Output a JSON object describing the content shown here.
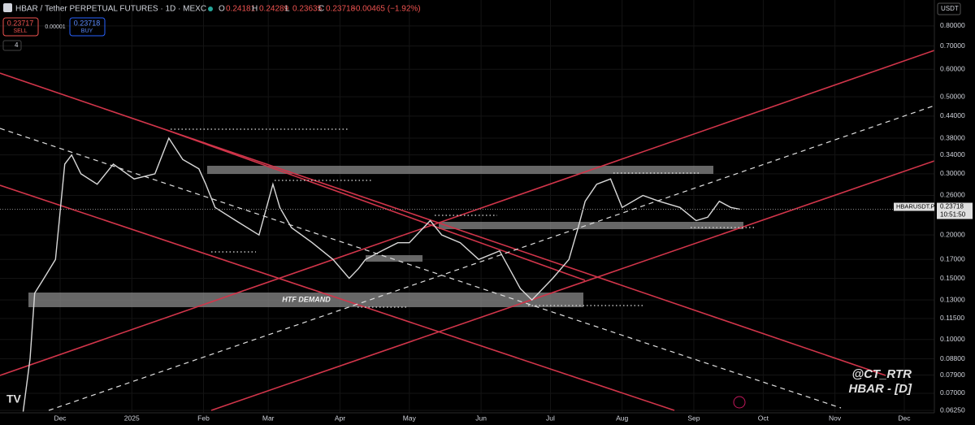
{
  "header": {
    "symbol": "HBAR / Tether PERPETUAL FUTURES · 1D · MEXC",
    "ohlc": [
      {
        "label": "O",
        "value": "0.24181"
      },
      {
        "label": "H",
        "value": "0.24289"
      },
      {
        "label": "L",
        "value": "0.23635"
      },
      {
        "label": "C",
        "value": "0.23718"
      }
    ],
    "change": "−0.00465 (−1.92%)"
  },
  "order": {
    "sell": "0.23717",
    "sell_label": "SELL",
    "spread": "0.00001",
    "buy": "0.23718",
    "buy_label": "BUY"
  },
  "indicators_count": "4",
  "currency": "USDT",
  "chart_data": {
    "type": "line",
    "log_scale": true,
    "grid": true,
    "xlim": [
      -26,
      378
    ],
    "xticks": [
      {
        "value": 0,
        "label": "Dec"
      },
      {
        "value": 31,
        "label": "2025"
      },
      {
        "value": 62,
        "label": "Feb"
      },
      {
        "value": 90,
        "label": "Mar"
      },
      {
        "value": 121,
        "label": "Apr"
      },
      {
        "value": 151,
        "label": "May"
      },
      {
        "value": 182,
        "label": "Jun"
      },
      {
        "value": 212,
        "label": "Jul"
      },
      {
        "value": 243,
        "label": "Aug"
      },
      {
        "value": 274,
        "label": "Sep"
      },
      {
        "value": 304,
        "label": "Oct"
      },
      {
        "value": 335,
        "label": "Nov"
      },
      {
        "value": 365,
        "label": "Dec"
      }
    ],
    "ylim": [
      0.0625,
      0.95
    ],
    "yticks": [
      {
        "value": 0.8,
        "label": "0.80000"
      },
      {
        "value": 0.7,
        "label": "0.70000"
      },
      {
        "value": 0.6,
        "label": "0.60000"
      },
      {
        "value": 0.5,
        "label": "0.50000"
      },
      {
        "value": 0.44,
        "label": "0.44000"
      },
      {
        "value": 0.38,
        "label": "0.38000"
      },
      {
        "value": 0.34,
        "label": "0.34000"
      },
      {
        "value": 0.3,
        "label": "0.30000"
      },
      {
        "value": 0.26,
        "label": "0.26000"
      },
      {
        "value": 0.2,
        "label": "0.20000"
      },
      {
        "value": 0.17,
        "label": "0.17000"
      },
      {
        "value": 0.15,
        "label": "0.15000"
      },
      {
        "value": 0.13,
        "label": "0.13000"
      },
      {
        "value": 0.115,
        "label": "0.11500"
      },
      {
        "value": 0.1,
        "label": "0.10000"
      },
      {
        "value": 0.088,
        "label": "0.08800"
      },
      {
        "value": 0.079,
        "label": "0.07900"
      },
      {
        "value": 0.07,
        "label": "0.07000"
      },
      {
        "value": 0.0625,
        "label": "0.06250"
      }
    ],
    "series": [
      {
        "name": "HBARUSDT.P",
        "color": "#d9d9d9",
        "x": [
          -16,
          -13,
          -11,
          -7,
          -2,
          2,
          5,
          9,
          16,
          23,
          32,
          41,
          47,
          53,
          60,
          63,
          67,
          76,
          86,
          92,
          95,
          100,
          109,
          118,
          125,
          129,
          132,
          139,
          146,
          151,
          160,
          165,
          173,
          181,
          190,
          199,
          204,
          213,
          220,
          224,
          227,
          232,
          238,
          243,
          252,
          259,
          268,
          275,
          280,
          285,
          290,
          294
        ],
        "values": [
          0.062,
          0.088,
          0.136,
          0.15,
          0.17,
          0.32,
          0.34,
          0.3,
          0.28,
          0.32,
          0.29,
          0.3,
          0.38,
          0.33,
          0.31,
          0.28,
          0.24,
          0.22,
          0.2,
          0.28,
          0.24,
          0.21,
          0.19,
          0.17,
          0.15,
          0.16,
          0.17,
          0.18,
          0.19,
          0.19,
          0.22,
          0.2,
          0.19,
          0.17,
          0.18,
          0.14,
          0.13,
          0.15,
          0.17,
          0.21,
          0.25,
          0.28,
          0.29,
          0.24,
          0.26,
          0.25,
          0.24,
          0.22,
          0.225,
          0.25,
          0.24,
          0.23718
        ]
      }
    ],
    "price_tag_countdown": "10:51:50",
    "annotation": "HTF DEMAND",
    "watermark": [
      "@CT_RTR",
      "HBAR - [D]"
    ]
  }
}
